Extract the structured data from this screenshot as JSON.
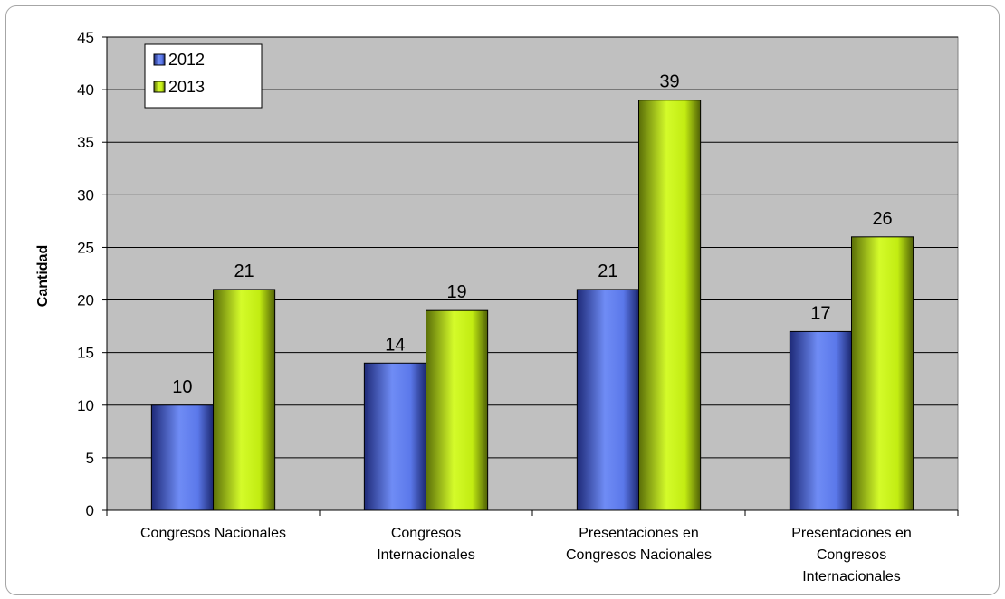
{
  "chart_data": {
    "type": "bar",
    "title": "",
    "xlabel": "",
    "ylabel": "Cantidad",
    "ylim": [
      0,
      45
    ],
    "ytick_step": 5,
    "grid": true,
    "legend_position": "top-left",
    "categories": [
      [
        "Congresos Nacionales"
      ],
      [
        "Congresos",
        "Internacionales"
      ],
      [
        "Presentaciones en",
        "Congresos Nacionales"
      ],
      [
        "Presentaciones en",
        "Congresos",
        "Internacionales"
      ]
    ],
    "series": [
      {
        "name": "2012",
        "values": [
          10,
          14,
          21,
          17
        ],
        "color": "#5a77e8"
      },
      {
        "name": "2013",
        "values": [
          21,
          19,
          39,
          26
        ],
        "color": "#c6f013"
      }
    ],
    "plot_background": "#c0c0c0"
  }
}
